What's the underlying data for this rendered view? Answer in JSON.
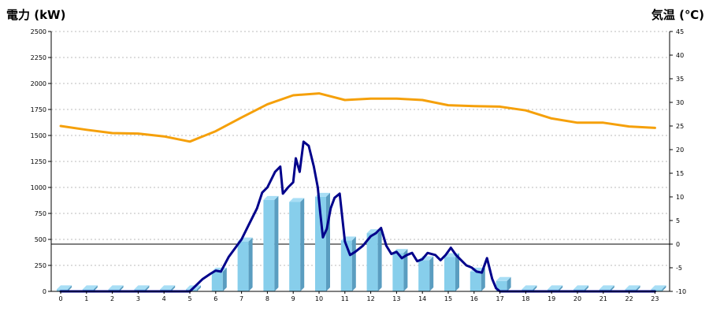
{
  "colors": {
    "power_line": "#00008b",
    "temperature_line": "#f5a00a",
    "bar_fill": "#87ceeb",
    "bar_side": "#5a9dc0",
    "bar_top": "#a8def5",
    "left_title": "#1f6db3",
    "right_title": "#f08c00",
    "grid": "#bbbbbb",
    "zero_line": "#000000"
  },
  "chart_data": {
    "type": "bar",
    "title": "",
    "ylabel": "電力 (kW)",
    "y2label": "気温 (℃)",
    "xlabel": "",
    "categories": [
      "0",
      "1",
      "2",
      "3",
      "4",
      "5",
      "6",
      "7",
      "8",
      "9",
      "10",
      "11",
      "12",
      "13",
      "14",
      "15",
      "16",
      "17",
      "18",
      "19",
      "20",
      "21",
      "22",
      "23"
    ],
    "ylim": [
      0,
      2500
    ],
    "y2lim": [
      -10,
      45
    ],
    "yticks": [
      "0",
      "250",
      "500",
      "750",
      "1000",
      "1250",
      "1500",
      "1750",
      "2000",
      "2250",
      "2500"
    ],
    "y2ticks": [
      "-10",
      "-5",
      "0",
      "5",
      "10",
      "15",
      "20",
      "25",
      "30",
      "35",
      "40",
      "45"
    ],
    "grid": true,
    "reference_line_y2": 0,
    "series": [
      {
        "kind": "bar",
        "values": [
          20,
          20,
          20,
          20,
          20,
          20,
          190,
          480,
          880,
          860,
          910,
          490,
          560,
          370,
          300,
          330,
          190,
          100,
          20,
          20,
          20,
          20,
          20,
          20
        ]
      },
      {
        "kind": "line",
        "axis": "left",
        "x": [
          0,
          1,
          2,
          3,
          4,
          5,
          5.5,
          5.8,
          6,
          6.2,
          6.5,
          7,
          7.3,
          7.6,
          7.8,
          8,
          8.3,
          8.5,
          8.6,
          8.8,
          9,
          9.1,
          9.25,
          9.4,
          9.6,
          9.8,
          9.95,
          10.05,
          10.15,
          10.3,
          10.45,
          10.6,
          10.8,
          11,
          11.2,
          11.4,
          11.7,
          12,
          12.2,
          12.4,
          12.6,
          12.8,
          13,
          13.2,
          13.4,
          13.6,
          13.8,
          14,
          14.2,
          14.5,
          14.7,
          14.9,
          15.1,
          15.3,
          15.5,
          15.7,
          15.9,
          16.1,
          16.3,
          16.5,
          16.7,
          16.85,
          17,
          17.2,
          17.5,
          18,
          19,
          20,
          21,
          22,
          23
        ],
        "values": [
          0,
          0,
          0,
          0,
          0,
          0,
          120,
          170,
          200,
          190,
          330,
          500,
          650,
          800,
          950,
          1000,
          1150,
          1200,
          940,
          1000,
          1050,
          1280,
          1150,
          1440,
          1400,
          1200,
          1000,
          750,
          520,
          600,
          800,
          900,
          940,
          480,
          350,
          380,
          440,
          530,
          560,
          610,
          440,
          360,
          380,
          320,
          350,
          370,
          290,
          310,
          370,
          350,
          300,
          350,
          420,
          350,
          300,
          250,
          230,
          190,
          180,
          320,
          120,
          30,
          0,
          0,
          0,
          0,
          0,
          0,
          0,
          0,
          0
        ]
      },
      {
        "kind": "line",
        "axis": "right",
        "x": [
          0,
          1,
          2,
          3,
          4,
          5,
          6,
          7,
          8,
          9,
          10,
          11,
          12,
          13,
          14,
          15,
          16,
          17,
          18,
          19,
          20,
          21,
          22,
          23
        ],
        "values": [
          25,
          24.2,
          23.5,
          23.4,
          22.8,
          21.7,
          23.9,
          26.8,
          29.6,
          31.5,
          31.9,
          30.5,
          30.8,
          30.8,
          30.5,
          29.4,
          29.2,
          29.1,
          28.3,
          26.6,
          25.7,
          25.7,
          24.9,
          24.6
        ]
      }
    ]
  }
}
